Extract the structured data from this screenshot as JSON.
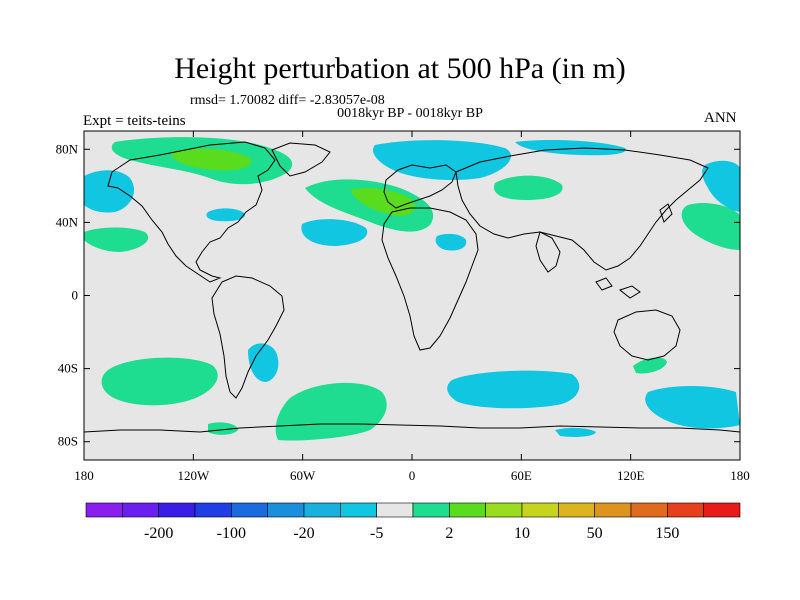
{
  "title": "Height perturbation at 500 hPa (in m)",
  "subtitle": "rmsd= 1.70082 diff= -2.83057e-08",
  "center_subtitle": "0018kyr BP - 0018kyr BP",
  "left_label": "Expt = teits-teins",
  "right_label": "ANN",
  "lat_ticks": [
    "80N",
    "40N",
    "0",
    "40S",
    "80S"
  ],
  "lon_ticks": [
    "180",
    "120W",
    "60W",
    "0",
    "60E",
    "120E",
    "180"
  ],
  "colorbar": {
    "colors": [
      "#8a1eef",
      "#6a1ef0",
      "#3a1ee8",
      "#1f3ee6",
      "#1a6ae0",
      "#1a90dd",
      "#18b0de",
      "#10c6e0",
      "#e6e6e6",
      "#1edc90",
      "#5adc1e",
      "#9adc1e",
      "#c6d41e",
      "#dcb41e",
      "#dc941e",
      "#e06a1e",
      "#e6401e",
      "#e81a1a"
    ],
    "labels": [
      "-200",
      "-100",
      "-20",
      "-5",
      "2",
      "10",
      "50",
      "150"
    ],
    "levels": [
      -300,
      -200,
      -150,
      -100,
      -50,
      -20,
      -10,
      -5,
      -2,
      2,
      5,
      10,
      20,
      50,
      100,
      150,
      200,
      300
    ]
  },
  "colors": {
    "ocean_fill": "#e6e6e6",
    "pos_fill": "#1edc90",
    "neg_fill": "#10c6e0",
    "strong_pos_fill": "#5adc1e",
    "coast": "#000000"
  }
}
